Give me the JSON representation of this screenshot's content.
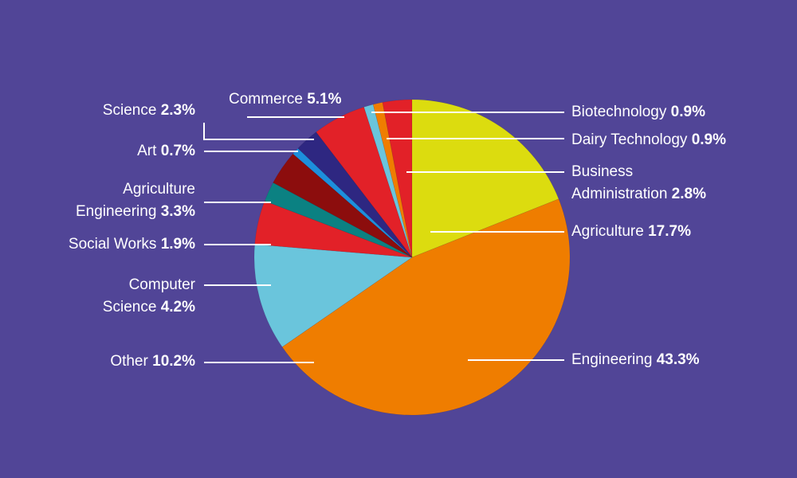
{
  "chart_data": {
    "type": "pie",
    "title": "",
    "slices": [
      {
        "label": "Business Administration",
        "value": "2.8%",
        "num": 2.8,
        "color": "#e22128"
      },
      {
        "label": "Agriculture",
        "value": "17.7%",
        "num": 17.7,
        "color": "#dcdc0f"
      },
      {
        "label": "Engineering",
        "value": "43.3%",
        "num": 43.3,
        "color": "#ef7d00"
      },
      {
        "label": "Other",
        "value": "10.2%",
        "num": 10.2,
        "color": "#6ac5dc"
      },
      {
        "label": "Computer Science",
        "value": "4.2%",
        "num": 4.2,
        "color": "#e22128"
      },
      {
        "label": "Social Works",
        "value": "1.9%",
        "num": 1.9,
        "color": "#0b8182"
      },
      {
        "label": "Agriculture Engineering",
        "value": "3.3%",
        "num": 3.3,
        "color": "#8c0d0d"
      },
      {
        "label": "Art",
        "value": "0.7%",
        "num": 0.7,
        "color": "#1d8fdc"
      },
      {
        "label": "Science",
        "value": "2.3%",
        "num": 2.3,
        "color": "#2e2781"
      },
      {
        "label": "Commerce",
        "value": "5.1%",
        "num": 5.1,
        "color": "#e22128"
      },
      {
        "label": "Biotechnology",
        "value": "0.9%",
        "num": 0.9,
        "color": "#6ac5dc"
      },
      {
        "label": "Dairy Technology",
        "value": "0.9%",
        "num": 0.9,
        "color": "#ef7d00"
      }
    ],
    "background": "#514597"
  },
  "labels": {
    "biotechnology": {
      "name": "Biotechnology",
      "value": "0.9%"
    },
    "dairy": {
      "name": "Dairy Technology",
      "value": "0.9%"
    },
    "business_line1": "Business",
    "business": {
      "name": "Administration",
      "value": "2.8%"
    },
    "agriculture": {
      "name": "Agriculture",
      "value": "17.7%"
    },
    "engineering": {
      "name": "Engineering",
      "value": "43.3%"
    },
    "commerce": {
      "name": "Commerce",
      "value": "5.1%"
    },
    "science": {
      "name": "Science",
      "value": "2.3%"
    },
    "art": {
      "name": "Art",
      "value": "0.7%"
    },
    "agri_eng_line1": "Agriculture",
    "agri_eng": {
      "name": "Engineering",
      "value": "3.3%"
    },
    "social": {
      "name": "Social Works",
      "value": "1.9%"
    },
    "comp_line1": "Computer",
    "comp": {
      "name": "Science",
      "value": "4.2%"
    },
    "other": {
      "name": "Other",
      "value": "10.2%"
    }
  }
}
